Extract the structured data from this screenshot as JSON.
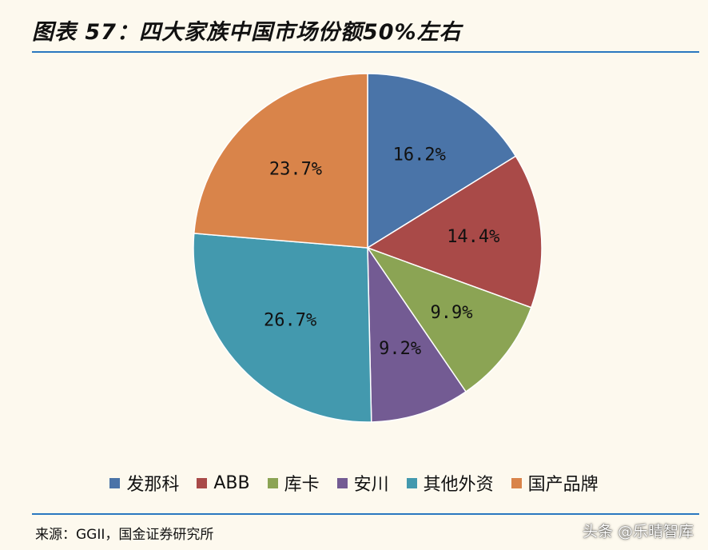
{
  "header": {
    "title": "图表 57：四大家族中国市场份额50%左右"
  },
  "footer": {
    "source": "来源：GGII，国金证券研究所",
    "watermark": "头条 @乐晴智库"
  },
  "chart_data": {
    "type": "pie",
    "title": "",
    "legend_position": "bottom",
    "slices": [
      {
        "name": "发那科",
        "value": 16.2,
        "label": "16.2%",
        "color": "#4a74a8"
      },
      {
        "name": "ABB",
        "value": 14.4,
        "label": "14.4%",
        "color": "#a94a48"
      },
      {
        "name": "库卡",
        "value": 9.9,
        "label": "9.9%",
        "color": "#8ba454"
      },
      {
        "name": "安川",
        "value": 9.2,
        "label": "9.2%",
        "color": "#735b93"
      },
      {
        "name": "其他外资",
        "value": 26.7,
        "label": "26.7%",
        "color": "#4399ae"
      },
      {
        "name": "国产品牌",
        "value": 23.7,
        "label": "23.7%",
        "color": "#d9844a"
      }
    ]
  }
}
